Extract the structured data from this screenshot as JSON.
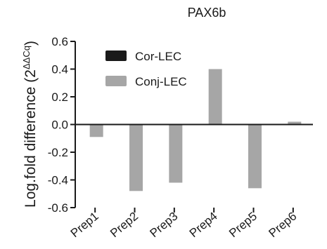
{
  "chart_data": {
    "type": "bar",
    "title": "PAX6b",
    "ylabel": "Log.fold difference (2",
    "ylabel_superscript": "ΔΔCq",
    "ylabel_close": ")",
    "categories": [
      "Prep1",
      "Prep2",
      "Prep3",
      "Prep4",
      "Prep5",
      "Prep6"
    ],
    "series": [
      {
        "name": "Cor-LEC",
        "color": "#1a1a1a",
        "values": [
          0,
          0,
          0,
          0,
          0,
          0
        ]
      },
      {
        "name": "Conj-LEC",
        "color": "#a6a6a6",
        "values": [
          -0.09,
          -0.48,
          -0.42,
          0.4,
          -0.46,
          0.02
        ]
      }
    ],
    "ylim": [
      -0.6,
      0.6
    ],
    "yticks": [
      -0.6,
      -0.4,
      -0.2,
      0.0,
      0.2,
      0.4,
      0.6
    ],
    "ytick_labels": [
      "-0.6",
      "-0.4",
      "-0.2",
      "0.0",
      "0.2",
      "0.4",
      "0.6"
    ],
    "grid": false,
    "legend_position": "top-left"
  }
}
